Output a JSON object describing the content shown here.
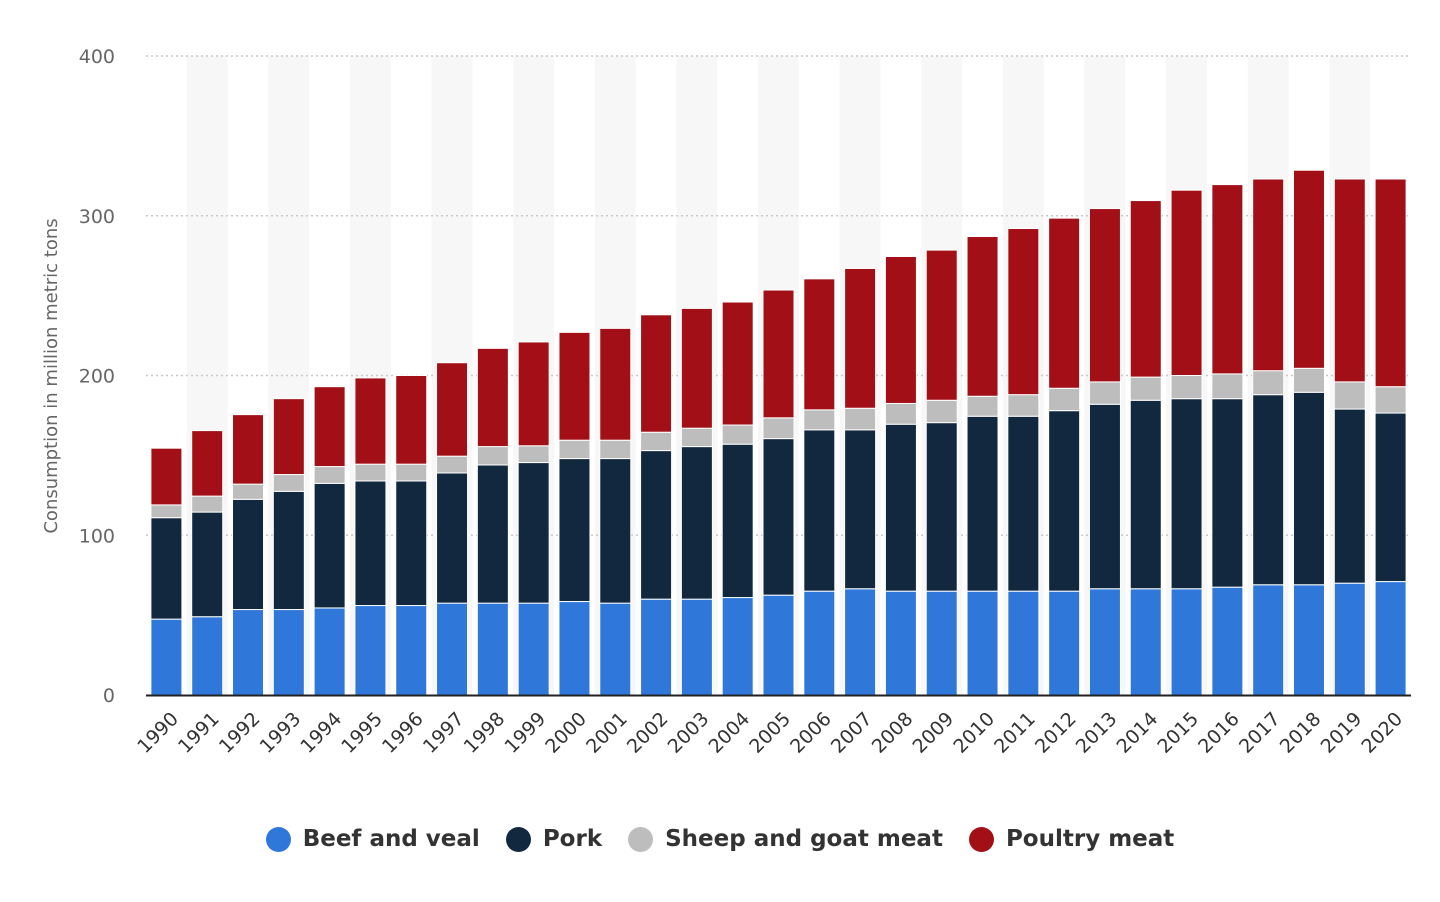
{
  "chart_data": {
    "type": "bar",
    "stacked": true,
    "categories": [
      "1990",
      "1991",
      "1992",
      "1993",
      "1994",
      "1995",
      "1996",
      "1997",
      "1998",
      "1999",
      "2000",
      "2001",
      "2002",
      "2003",
      "2004",
      "2005",
      "2006",
      "2007",
      "2008",
      "2009",
      "2010",
      "2011",
      "2012",
      "2013",
      "2014",
      "2015",
      "2016",
      "2017",
      "2018",
      "2019",
      "2020"
    ],
    "series": [
      {
        "name": "Beef and veal",
        "color": "#2f78da",
        "values": [
          47.5,
          49,
          53.5,
          53.5,
          54.5,
          56,
          56,
          57.5,
          57.5,
          57.5,
          58.5,
          57.5,
          60,
          60,
          61,
          62.5,
          65,
          66.5,
          65,
          65,
          65,
          65,
          65,
          66.5,
          66.5,
          66.5,
          67.5,
          69,
          69,
          70,
          71
        ]
      },
      {
        "name": "Pork",
        "color": "#12283e",
        "values": [
          63.5,
          65.5,
          69,
          74,
          78,
          78,
          78,
          81.5,
          86.5,
          88,
          89.5,
          90.5,
          93,
          95.5,
          96,
          98,
          101,
          99.5,
          104.5,
          105.5,
          109.5,
          109.5,
          113,
          115.5,
          118,
          119,
          118,
          119,
          120.5,
          109,
          105.5
        ]
      },
      {
        "name": "Sheep and goat meat",
        "color": "#bdbdbd",
        "values": [
          8,
          10,
          9.5,
          10.5,
          10.5,
          10.5,
          10.5,
          10.5,
          11.5,
          10.5,
          11.5,
          11.5,
          11.5,
          11.5,
          12,
          13,
          12.5,
          13.5,
          13,
          14,
          12.5,
          13.5,
          14,
          14,
          14.5,
          14.5,
          15.5,
          15,
          15,
          17,
          16.5
        ]
      },
      {
        "name": "Poultry meat",
        "color": "#a20f17",
        "values": [
          35.5,
          41,
          43.5,
          47.5,
          50,
          54,
          55.5,
          58.5,
          61.5,
          65,
          67.5,
          70,
          73.5,
          75,
          77,
          80,
          82,
          87.5,
          92,
          94,
          100,
          104,
          106.5,
          108.5,
          110.5,
          116,
          118.5,
          120,
          124,
          127,
          130
        ]
      }
    ],
    "ylabel": "Consumption in million metric tons",
    "xlabel": "",
    "ylim": [
      0,
      400
    ],
    "yticks": [
      0,
      100,
      200,
      300,
      400
    ],
    "grid": "horizontal-dotted",
    "legend_position": "bottom"
  }
}
